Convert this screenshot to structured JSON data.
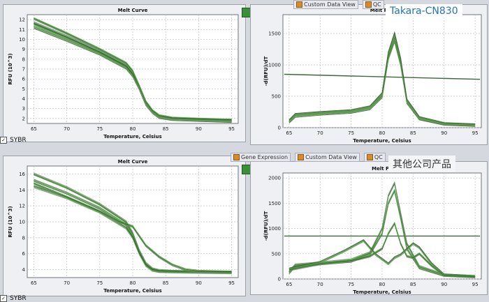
{
  "top": {
    "left_chart": {
      "title": "Melt Curve",
      "xlabel": "Temperature, Celsius",
      "ylabel": "RFU (10^3)",
      "x_ticks": [
        "65",
        "70",
        "75",
        "80",
        "85",
        "90",
        "95"
      ],
      "y_ticks": [
        "2",
        "3",
        "4",
        "5",
        "6",
        "7",
        "8",
        "9",
        "10",
        "11",
        "12"
      ]
    },
    "right_chart": {
      "title": "Melt Pea",
      "xlabel": "Temperature, Celsius",
      "ylabel": "-d(RFU)/dT",
      "x_ticks": [
        "65",
        "70",
        "75",
        "80",
        "85",
        "90",
        "95"
      ],
      "y_ticks": [
        "0",
        "500",
        "1000",
        "1500"
      ]
    },
    "toolbar": [
      "Custom Data View",
      "QC"
    ],
    "sybr_label": "SYBR",
    "brand_label": "Takara-CN830"
  },
  "bottom": {
    "left_chart": {
      "title": "Melt Curve",
      "xlabel": "Temperature, Celsius",
      "ylabel": "RFU (10^3)",
      "x_ticks": [
        "65",
        "70",
        "75",
        "80",
        "85",
        "90",
        "95"
      ],
      "y_ticks": [
        "4",
        "6",
        "8",
        "10",
        "12",
        "14",
        "16"
      ]
    },
    "right_chart": {
      "title": "Melt Pe",
      "xlabel": "Temperature, Celsius",
      "ylabel": "-d(RFU)/dT",
      "x_ticks": [
        "65",
        "70",
        "75",
        "80",
        "85",
        "90",
        "95"
      ],
      "y_ticks": [
        "0",
        "500",
        "1000",
        "1500",
        "2000"
      ]
    },
    "toolbar": [
      "Gene Expression",
      "Custom Data View",
      "QC"
    ],
    "sybr_label": "SYBR",
    "brand_label": "其他公司产品"
  },
  "colors": {
    "curve": "#3f8f2f",
    "curve_dark": "#2e5f26",
    "threshold": "#3a6a3a",
    "grid": "#b9bdc4"
  },
  "chart_data": [
    {
      "type": "line",
      "title": "Melt Curve",
      "xlabel": "Temperature, Celsius",
      "ylabel": "RFU (10^3)",
      "xlim": [
        64,
        96
      ],
      "ylim": [
        1.5,
        12.5
      ],
      "series": [
        {
          "x": [
            65,
            70,
            75,
            79,
            80,
            81,
            82,
            83,
            84,
            86,
            90,
            95
          ],
          "values": [
            11.7,
            10.3,
            8.8,
            7.4,
            6.6,
            5.2,
            3.6,
            2.7,
            2.2,
            2.0,
            1.9,
            1.8
          ]
        },
        {
          "x": [
            65,
            70,
            75,
            79,
            80,
            81,
            82,
            83,
            84,
            86,
            90,
            95
          ],
          "values": [
            11.2,
            9.9,
            8.5,
            7.1,
            6.3,
            5.0,
            3.4,
            2.6,
            2.1,
            1.9,
            1.8,
            1.7
          ]
        },
        {
          "x": [
            65,
            70,
            75,
            79,
            80,
            81,
            82,
            83,
            84,
            86,
            90,
            95
          ],
          "values": [
            11.5,
            10.1,
            8.6,
            7.2,
            6.4,
            5.1,
            3.5,
            2.65,
            2.15,
            1.95,
            1.85,
            1.75
          ]
        },
        {
          "x": [
            65,
            70,
            75,
            79,
            80,
            81,
            82,
            83,
            84,
            86,
            90,
            95
          ],
          "values": [
            12.1,
            10.6,
            9.0,
            7.6,
            6.8,
            5.3,
            3.7,
            2.8,
            2.3,
            2.05,
            1.95,
            1.85
          ]
        }
      ]
    },
    {
      "type": "line",
      "title": "Melt Peak",
      "xlabel": "Temperature, Celsius",
      "ylabel": "-d(RFU)/dT",
      "xlim": [
        64,
        96
      ],
      "ylim": [
        0,
        1800
      ],
      "threshold": 850,
      "series": [
        {
          "x": [
            65,
            66,
            70,
            75,
            78,
            80,
            81,
            82,
            83,
            84,
            86,
            90,
            95
          ],
          "values": [
            100,
            200,
            230,
            260,
            320,
            520,
            1150,
            1450,
            1050,
            420,
            150,
            60,
            40
          ]
        },
        {
          "x": [
            65,
            66,
            70,
            75,
            78,
            80,
            81,
            82,
            83,
            84,
            86,
            90,
            95
          ],
          "values": [
            90,
            180,
            215,
            245,
            300,
            490,
            1100,
            1380,
            1000,
            400,
            140,
            55,
            35
          ]
        },
        {
          "x": [
            65,
            66,
            70,
            75,
            78,
            80,
            81,
            82,
            83,
            84,
            86,
            90,
            95
          ],
          "values": [
            110,
            210,
            240,
            270,
            330,
            540,
            1190,
            1500,
            1090,
            440,
            160,
            65,
            45
          ]
        }
      ]
    },
    {
      "type": "line",
      "title": "Melt Curve",
      "xlabel": "Temperature, Celsius",
      "ylabel": "RFU (10^3)",
      "xlim": [
        64,
        96
      ],
      "ylim": [
        3,
        17
      ],
      "series": [
        {
          "x": [
            65,
            70,
            75,
            79,
            80,
            81,
            82,
            83,
            84,
            86,
            90,
            95
          ],
          "values": [
            16.0,
            14.3,
            12.2,
            10.0,
            8.6,
            6.4,
            4.8,
            4.1,
            3.9,
            3.8,
            3.7,
            3.7
          ]
        },
        {
          "x": [
            65,
            70,
            75,
            79,
            80,
            81,
            82,
            83,
            84,
            86,
            90,
            95
          ],
          "values": [
            15.2,
            13.6,
            11.7,
            9.6,
            8.3,
            6.2,
            4.6,
            4.0,
            3.8,
            3.75,
            3.7,
            3.65
          ]
        },
        {
          "x": [
            65,
            70,
            75,
            79,
            80,
            81,
            82,
            83,
            84,
            86,
            90,
            95
          ],
          "values": [
            14.4,
            13.0,
            11.2,
            9.2,
            8.0,
            6.0,
            4.5,
            3.9,
            3.75,
            3.7,
            3.65,
            3.6
          ]
        },
        {
          "x": [
            65,
            70,
            75,
            78,
            80,
            82,
            84,
            86,
            88,
            90,
            95
          ],
          "values": [
            14.8,
            13.1,
            11.3,
            10.0,
            9.4,
            7.0,
            5.6,
            4.6,
            4.0,
            3.8,
            3.7
          ]
        }
      ]
    },
    {
      "type": "line",
      "title": "Melt Peak",
      "xlabel": "Temperature, Celsius",
      "ylabel": "-d(RFU)/dT",
      "xlim": [
        64,
        96
      ],
      "ylim": [
        0,
        2100
      ],
      "threshold": 850,
      "series": [
        {
          "x": [
            65,
            66,
            70,
            75,
            78,
            80,
            81,
            82,
            83,
            84,
            86,
            90,
            95
          ],
          "values": [
            150,
            280,
            320,
            380,
            520,
            1000,
            1650,
            1900,
            1300,
            700,
            250,
            80,
            50
          ]
        },
        {
          "x": [
            65,
            66,
            70,
            75,
            78,
            80,
            81,
            82,
            83,
            84,
            86,
            90,
            95
          ],
          "values": [
            120,
            260,
            300,
            350,
            480,
            900,
            1500,
            1750,
            1200,
            600,
            220,
            70,
            45
          ]
        },
        {
          "x": [
            65,
            70,
            74,
            77,
            79,
            81,
            82,
            83,
            85,
            86,
            88,
            90,
            95
          ],
          "values": [
            200,
            330,
            560,
            760,
            480,
            300,
            420,
            480,
            700,
            620,
            300,
            80,
            50
          ]
        },
        {
          "x": [
            65,
            70,
            75,
            78,
            80,
            81,
            82,
            83,
            84,
            85,
            86,
            88,
            90,
            95
          ],
          "values": [
            180,
            300,
            360,
            450,
            600,
            900,
            1100,
            700,
            450,
            420,
            500,
            260,
            70,
            40
          ]
        }
      ]
    }
  ]
}
